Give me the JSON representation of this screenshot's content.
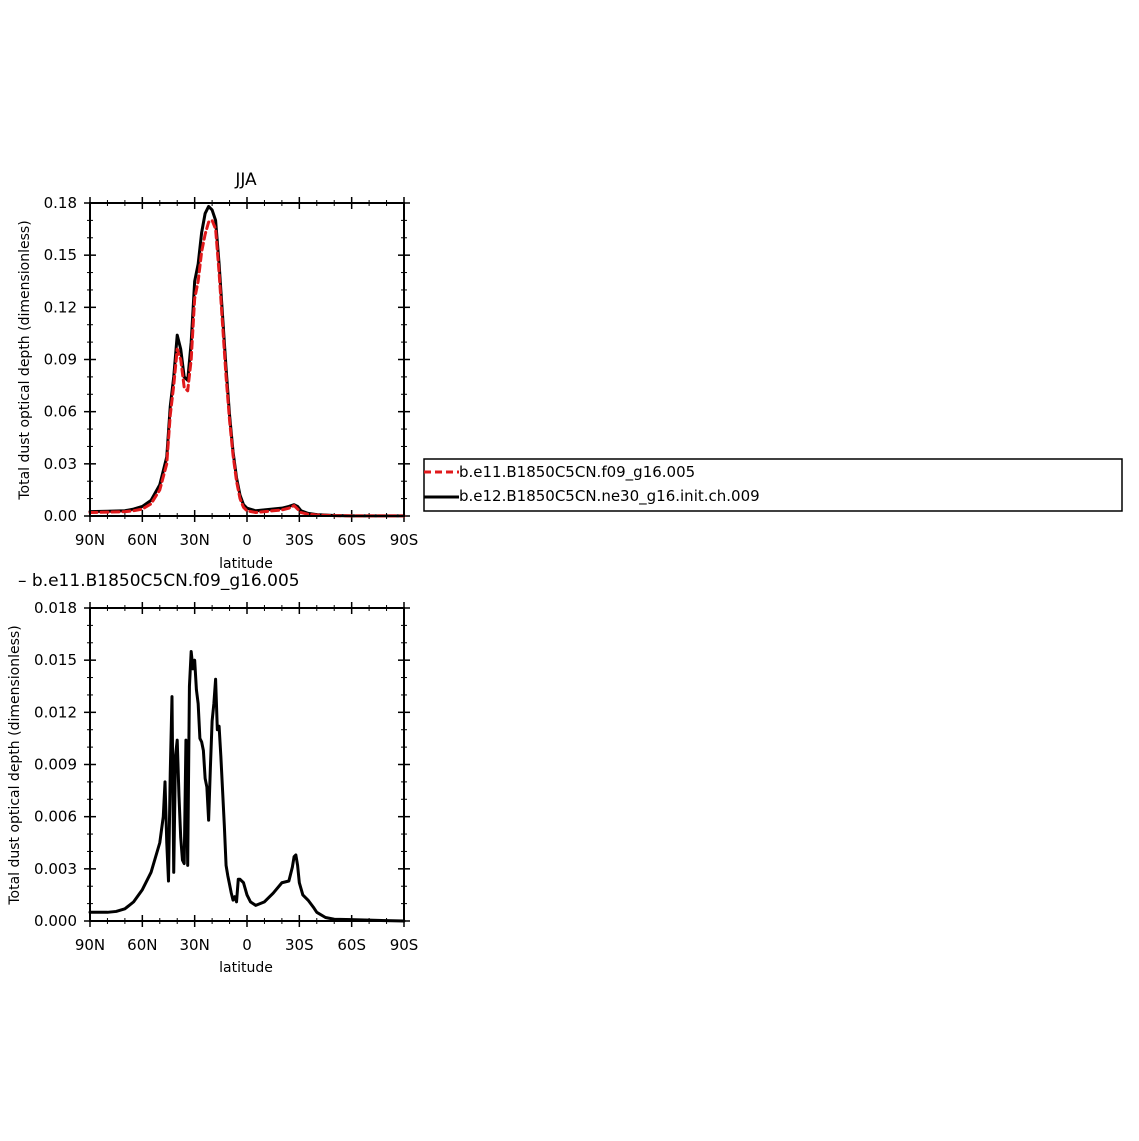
{
  "chart_data": [
    {
      "type": "line",
      "title": "JJA",
      "xlabel": "latitude",
      "ylabel": "Total dust optical depth (dimensionless)",
      "xlim": [
        -90,
        90
      ],
      "ylim": [
        0,
        0.18
      ],
      "x_ticks": [
        -90,
        -60,
        -30,
        0,
        30,
        60,
        90
      ],
      "x_tick_labels": [
        "90N",
        "60N",
        "30N",
        "0",
        "30S",
        "60S",
        "90S"
      ],
      "y_ticks": [
        0,
        0.03,
        0.06,
        0.09,
        0.12,
        0.15,
        0.18
      ],
      "y_tick_labels": [
        "0.00",
        "0.03",
        "0.06",
        "0.09",
        "0.12",
        "0.15",
        "0.18"
      ],
      "legend": "outside-right",
      "series": [
        {
          "name": "b.e11.B1850C5CN.f09_g16.005",
          "color": "#e0191b",
          "dash": "dashed",
          "x": [
            -90,
            -80,
            -70,
            -65,
            -60,
            -55,
            -50,
            -46,
            -44,
            -42,
            -40,
            -38,
            -36,
            -34,
            -32,
            -30,
            -28,
            -26,
            -24,
            -22,
            -20,
            -18,
            -16,
            -14,
            -12,
            -10,
            -8,
            -6,
            -4,
            -2,
            0,
            5,
            10,
            15,
            20,
            24,
            27,
            29,
            31,
            35,
            40,
            50,
            60,
            70,
            80,
            90
          ],
          "y": [
            0.002,
            0.0022,
            0.0025,
            0.003,
            0.004,
            0.007,
            0.015,
            0.03,
            0.058,
            0.075,
            0.096,
            0.09,
            0.074,
            0.072,
            0.09,
            0.125,
            0.135,
            0.152,
            0.162,
            0.169,
            0.17,
            0.165,
            0.14,
            0.11,
            0.08,
            0.055,
            0.035,
            0.02,
            0.01,
            0.005,
            0.003,
            0.002,
            0.0025,
            0.003,
            0.0035,
            0.0045,
            0.006,
            0.004,
            0.002,
            0.001,
            0.0006,
            0.0002,
            0.0001,
            0.0001,
            0.0001,
            0.0001
          ]
        },
        {
          "name": "b.e12.B1850C5CN.ne30_g16.init.ch.009",
          "color": "#000000",
          "dash": "solid",
          "x": [
            -90,
            -80,
            -70,
            -65,
            -60,
            -55,
            -50,
            -46,
            -44,
            -42,
            -40,
            -38,
            -36,
            -34,
            -32,
            -30,
            -28,
            -26,
            -24,
            -22,
            -20,
            -18,
            -16,
            -14,
            -12,
            -10,
            -8,
            -6,
            -4,
            -2,
            0,
            5,
            10,
            15,
            20,
            24,
            27,
            29,
            31,
            35,
            40,
            50,
            60,
            70,
            80,
            90
          ],
          "y": [
            0.0025,
            0.0027,
            0.003,
            0.004,
            0.0055,
            0.009,
            0.018,
            0.034,
            0.063,
            0.08,
            0.104,
            0.096,
            0.08,
            0.078,
            0.1,
            0.135,
            0.145,
            0.163,
            0.174,
            0.178,
            0.176,
            0.17,
            0.145,
            0.115,
            0.085,
            0.058,
            0.037,
            0.022,
            0.012,
            0.0065,
            0.0045,
            0.003,
            0.0035,
            0.004,
            0.0045,
            0.0055,
            0.0065,
            0.0055,
            0.003,
            0.0015,
            0.0008,
            0.0003,
            0.0001,
            0.0001,
            0.0001,
            0.0001
          ]
        }
      ]
    },
    {
      "type": "line",
      "title": "– b.e11.B1850C5CN.f09_g16.005",
      "xlabel": "latitude",
      "ylabel": "Total dust optical depth (dimensionless)",
      "xlim": [
        -90,
        90
      ],
      "ylim": [
        0,
        0.018
      ],
      "x_ticks": [
        -90,
        -60,
        -30,
        0,
        30,
        60,
        90
      ],
      "x_tick_labels": [
        "90N",
        "60N",
        "30N",
        "0",
        "30S",
        "60S",
        "90S"
      ],
      "y_ticks": [
        0,
        0.003,
        0.006,
        0.009,
        0.012,
        0.015,
        0.018
      ],
      "y_tick_labels": [
        "0.000",
        "0.003",
        "0.006",
        "0.009",
        "0.012",
        "0.015",
        "0.018"
      ],
      "series": [
        {
          "color": "#000000",
          "dash": "solid",
          "x": [
            -90,
            -80,
            -75,
            -70,
            -65,
            -60,
            -55,
            -50,
            -48,
            -47,
            -46,
            -45,
            -44,
            -43,
            -42,
            -41,
            -40,
            -39,
            -38,
            -37,
            -36,
            -35,
            -34,
            -33,
            -32,
            -31,
            -30,
            -29,
            -28,
            -27,
            -26,
            -25,
            -24,
            -23,
            -22,
            -21,
            -20,
            -19,
            -18,
            -17,
            -16,
            -15,
            -14,
            -13,
            -12,
            -11,
            -10,
            -9,
            -8,
            -7,
            -6,
            -5,
            -4,
            -2,
            0,
            2,
            5,
            10,
            15,
            20,
            24,
            26,
            27,
            28,
            29,
            30,
            32,
            35,
            38,
            40,
            45,
            50,
            60,
            70,
            80,
            90
          ],
          "y": [
            0.0005,
            0.0005,
            0.00055,
            0.0007,
            0.0011,
            0.0018,
            0.0028,
            0.0045,
            0.006,
            0.008,
            0.0045,
            0.0023,
            0.0085,
            0.0129,
            0.0028,
            0.0095,
            0.0104,
            0.0072,
            0.0048,
            0.0035,
            0.0033,
            0.0104,
            0.0032,
            0.0135,
            0.0155,
            0.0145,
            0.015,
            0.0133,
            0.0125,
            0.0105,
            0.0103,
            0.0098,
            0.0082,
            0.0077,
            0.0058,
            0.0088,
            0.0115,
            0.0125,
            0.0139,
            0.011,
            0.0112,
            0.0095,
            0.0075,
            0.0055,
            0.0032,
            0.0026,
            0.0021,
            0.0016,
            0.0012,
            0.0014,
            0.0011,
            0.0024,
            0.0024,
            0.0022,
            0.0015,
            0.0011,
            0.0009,
            0.0011,
            0.0016,
            0.0022,
            0.0023,
            0.0031,
            0.0037,
            0.0038,
            0.0032,
            0.0022,
            0.0015,
            0.0012,
            0.0008,
            0.0005,
            0.0002,
            0.0001,
            8e-05,
            5e-05,
            2e-05,
            0.0
          ],
          "markers": []
        }
      ]
    }
  ],
  "colors": {
    "series_red": "#e0191b",
    "series_black": "#000000",
    "axes": "#000000",
    "background": "#ffffff"
  }
}
